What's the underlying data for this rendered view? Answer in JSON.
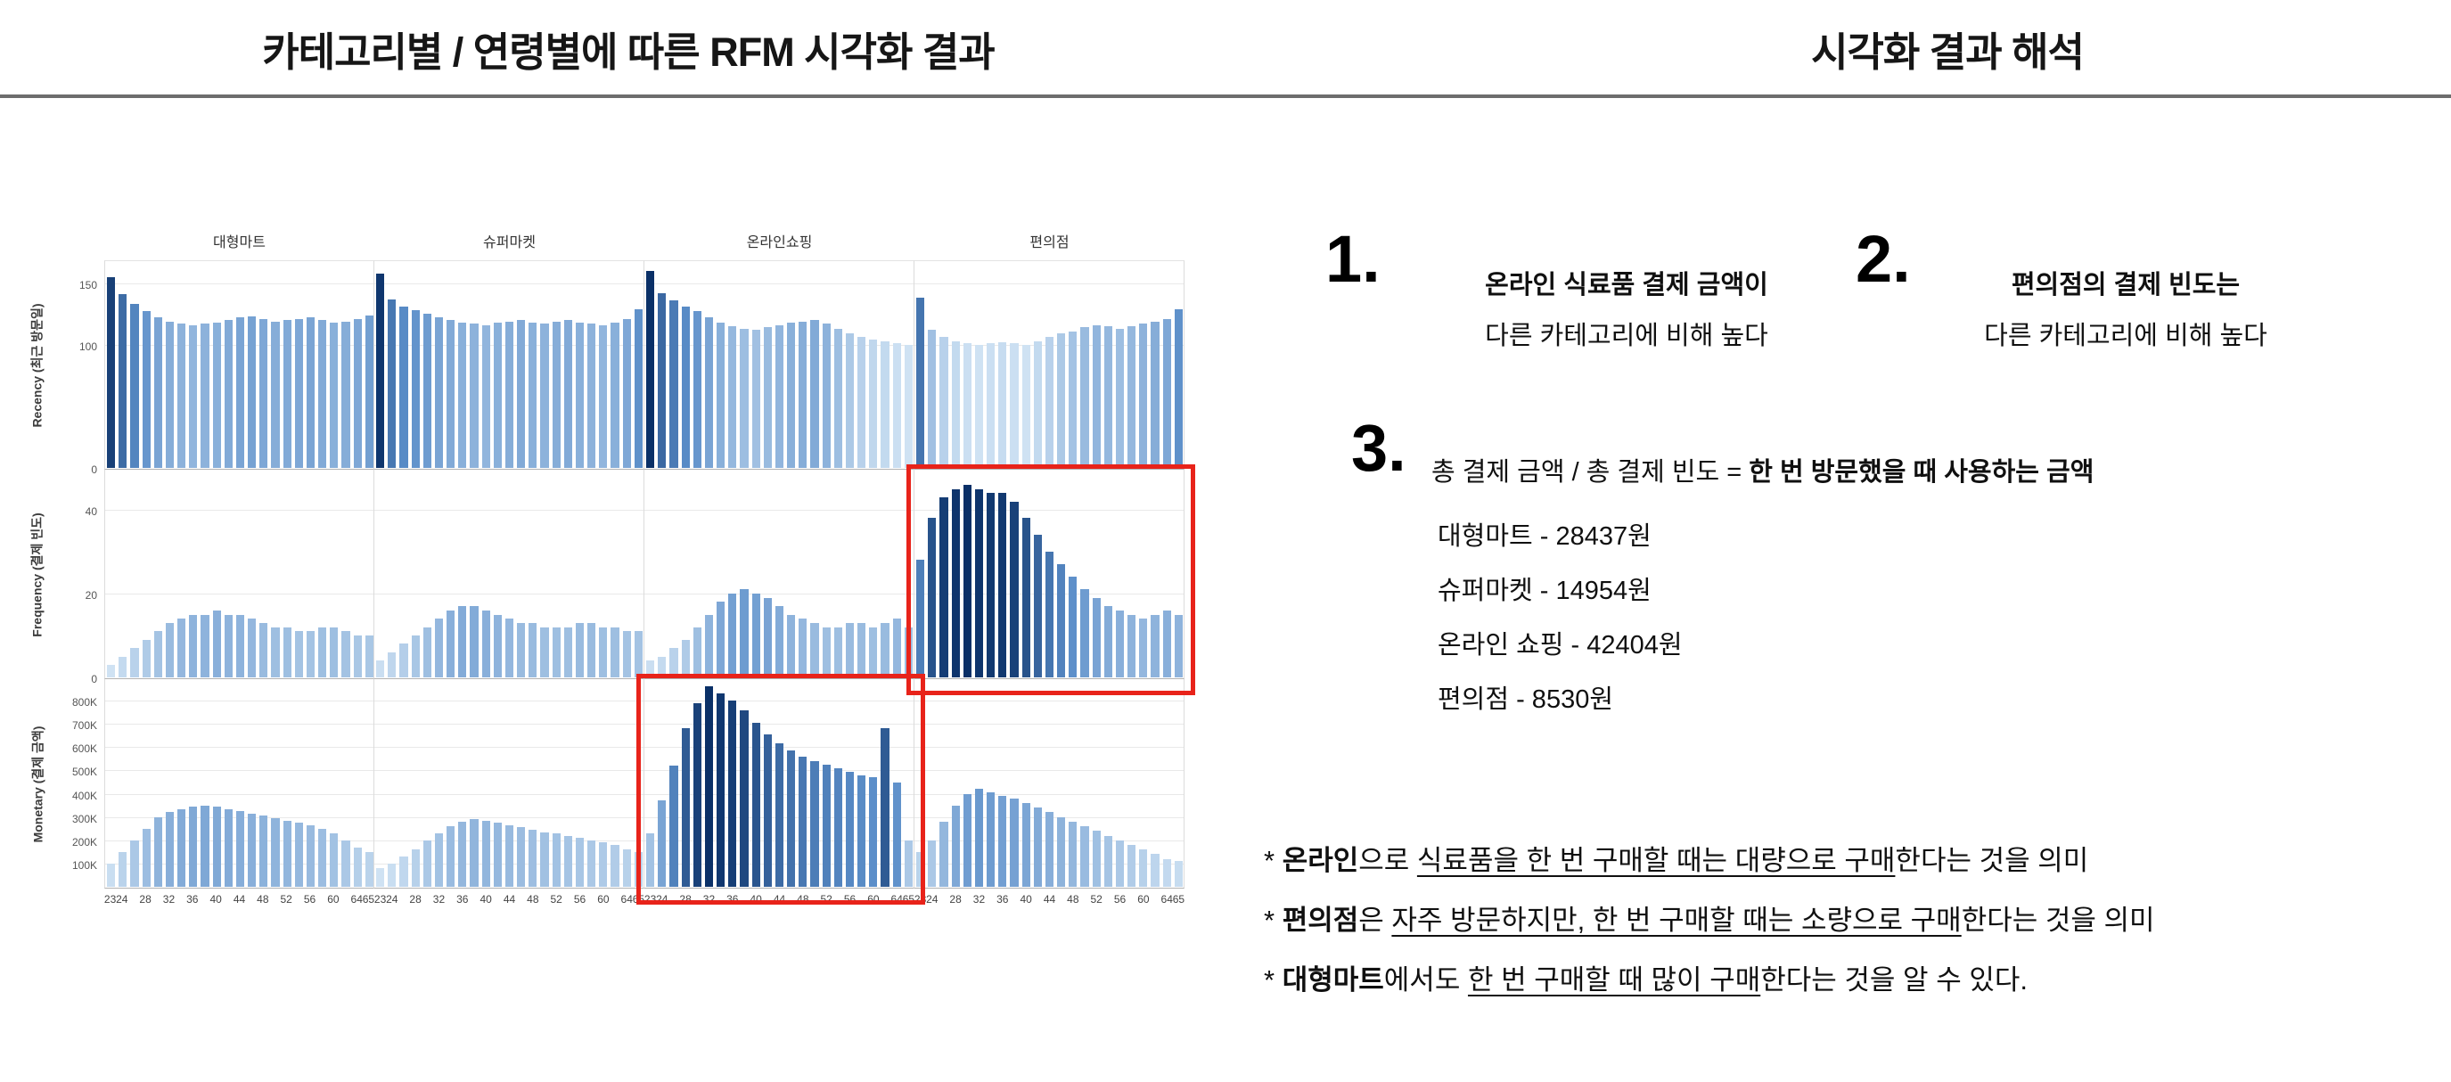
{
  "header": {
    "left_title": "카테고리별 / 연령별에 따른 RFM 시각화 결과",
    "right_title": "시각화 결과 해석"
  },
  "chart_data": {
    "type": "bar",
    "layout": "small-multiples",
    "columns": [
      "대형마트",
      "슈퍼마켓",
      "온라인쇼핑",
      "편의점"
    ],
    "rows": [
      {
        "name": "Recency",
        "label": "Recency (최근 방문일)",
        "ticks": [
          0,
          100,
          150
        ],
        "ymax": 170,
        "tick_format": "plain"
      },
      {
        "name": "Frequency",
        "label": "Frequency (결제 빈도)",
        "ticks": [
          0,
          20,
          40
        ],
        "ymax": 50,
        "tick_format": "plain"
      },
      {
        "name": "Monetary",
        "label": "Monetary (결제 금액)",
        "ticks": [
          100000,
          200000,
          300000,
          400000,
          500000,
          600000,
          700000,
          800000
        ],
        "ymax": 900000,
        "tick_format": "K"
      }
    ],
    "ages": [
      23,
      24,
      26,
      28,
      30,
      32,
      34,
      36,
      38,
      40,
      42,
      44,
      46,
      48,
      50,
      52,
      54,
      56,
      58,
      60,
      62,
      64,
      65
    ],
    "x_tick_labels": [
      23,
      24,
      28,
      32,
      36,
      40,
      44,
      48,
      52,
      56,
      60,
      64,
      65
    ],
    "values": {
      "Recency": {
        "대형마트": [
          155,
          141,
          133,
          127,
          122,
          119,
          117,
          116,
          117,
          118,
          120,
          122,
          123,
          121,
          119,
          120,
          121,
          122,
          120,
          118,
          119,
          121,
          124
        ],
        "슈퍼마켓": [
          158,
          137,
          131,
          128,
          125,
          122,
          120,
          118,
          117,
          116,
          118,
          119,
          120,
          118,
          117,
          119,
          120,
          118,
          117,
          116,
          118,
          121,
          129
        ],
        "온라인쇼핑": [
          160,
          142,
          136,
          131,
          127,
          122,
          118,
          115,
          113,
          112,
          114,
          116,
          118,
          119,
          120,
          117,
          113,
          109,
          106,
          104,
          103,
          101,
          100
        ],
        "편의점": [
          138,
          112,
          106,
          103,
          101,
          100,
          101,
          102,
          101,
          100,
          103,
          106,
          109,
          111,
          114,
          116,
          115,
          113,
          115,
          117,
          119,
          121,
          129
        ]
      },
      "Frequency": {
        "대형마트": [
          3,
          5,
          7,
          9,
          11,
          13,
          14,
          15,
          15,
          16,
          15,
          15,
          14,
          13,
          12,
          12,
          11,
          11,
          12,
          12,
          11,
          10,
          10
        ],
        "슈퍼마켓": [
          4,
          6,
          8,
          10,
          12,
          14,
          16,
          17,
          17,
          16,
          15,
          14,
          13,
          13,
          12,
          12,
          12,
          13,
          13,
          12,
          12,
          11,
          11
        ],
        "온라인쇼핑": [
          4,
          5,
          7,
          9,
          12,
          15,
          18,
          20,
          21,
          20,
          19,
          17,
          15,
          14,
          13,
          12,
          12,
          13,
          13,
          12,
          13,
          14,
          12
        ],
        "편의점": [
          28,
          38,
          43,
          45,
          46,
          45,
          44,
          44,
          42,
          38,
          34,
          30,
          27,
          24,
          21,
          19,
          17,
          16,
          15,
          14,
          15,
          16,
          15
        ]
      },
      "Monetary": {
        "대형마트": [
          100000,
          150000,
          200000,
          250000,
          300000,
          320000,
          335000,
          345000,
          350000,
          345000,
          335000,
          325000,
          315000,
          305000,
          295000,
          285000,
          275000,
          265000,
          250000,
          230000,
          200000,
          170000,
          150000
        ],
        "슈퍼마켓": [
          80000,
          100000,
          130000,
          160000,
          200000,
          230000,
          260000,
          280000,
          290000,
          285000,
          275000,
          265000,
          255000,
          245000,
          235000,
          230000,
          220000,
          210000,
          200000,
          190000,
          180000,
          160000,
          150000
        ],
        "온라인쇼핑": [
          230000,
          370000,
          520000,
          680000,
          790000,
          860000,
          830000,
          800000,
          760000,
          705000,
          655000,
          615000,
          585000,
          560000,
          540000,
          525000,
          510000,
          495000,
          480000,
          470000,
          680000,
          450000,
          200000
        ],
        "편의점": [
          150000,
          200000,
          280000,
          350000,
          400000,
          420000,
          405000,
          390000,
          380000,
          360000,
          340000,
          320000,
          300000,
          280000,
          260000,
          240000,
          220000,
          200000,
          180000,
          160000,
          140000,
          120000,
          110000
        ]
      }
    },
    "colors": {
      "low": "#cfe2f3",
      "mid": "#5b8ec9",
      "high": "#0a3067"
    },
    "highlight_color": "#e8231a",
    "highlight_boxes": [
      {
        "row": "Frequency",
        "column": "편의점"
      },
      {
        "row": "Monetary",
        "column": "온라인쇼핑"
      }
    ]
  },
  "interpretation": {
    "points": [
      {
        "number": "1.",
        "line1": [
          {
            "t": "온라인 식료품 결제 금액이",
            "b": true
          }
        ],
        "line2": [
          {
            "t": "다른 카테고리에 비해 높다"
          }
        ]
      },
      {
        "number": "2.",
        "line1": [
          {
            "t": "편의점의 결제 빈도는",
            "b": true
          }
        ],
        "line2": [
          {
            "t": "다른 카테고리에 비해 높다"
          }
        ]
      },
      {
        "number": "3.",
        "line1": [
          {
            "t": "총 결제 금액 / 총 결제 빈도 = "
          },
          {
            "t": "한 번 방문했을 때 사용하는 금액",
            "b": true
          }
        ]
      }
    ],
    "amounts": [
      "대형마트 - 28437원",
      "슈퍼마켓 - 14954원",
      "온라인 쇼핑 - 42404원",
      "편의점 - 8530원"
    ],
    "notes": [
      [
        {
          "t": "* "
        },
        {
          "t": "온라인",
          "b": true
        },
        {
          "t": "으로 "
        },
        {
          "t": "식료품을 한 번 구매할 때는 대량으로 구매",
          "u": true
        },
        {
          "t": "한다는 것을 의미"
        }
      ],
      [
        {
          "t": "* "
        },
        {
          "t": "편의점",
          "b": true
        },
        {
          "t": "은 "
        },
        {
          "t": "자주 방문하지만, 한 번 구매할 때는 소량으로 구매",
          "u": true
        },
        {
          "t": "한다는 것을 의미"
        }
      ],
      [
        {
          "t": "* "
        },
        {
          "t": "대형마트",
          "b": true
        },
        {
          "t": "에서도 "
        },
        {
          "t": "한 번 구매할 때 많이 구매",
          "u": true
        },
        {
          "t": "한다는 것을 알 수 있다."
        }
      ]
    ]
  }
}
